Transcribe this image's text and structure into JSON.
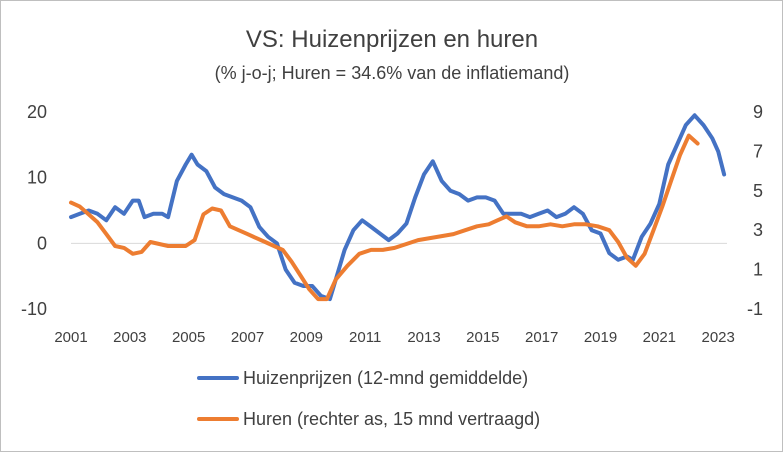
{
  "chart_data": {
    "type": "line",
    "title": "VS: Huizenprijzen  en huren",
    "subtitle": "(% j-o-j; Huren = 34.6% van de inflatiemand)",
    "x_ticks": [
      "2001",
      "2003",
      "2005",
      "2007",
      "2009",
      "2011",
      "2013",
      "2015",
      "2017",
      "2019",
      "2021",
      "2023"
    ],
    "x_range": [
      2001,
      2023.3
    ],
    "y_left": {
      "ticks": [
        "20",
        "10",
        "0",
        "-10"
      ],
      "range": [
        -10,
        20
      ]
    },
    "y_right": {
      "ticks": [
        "9",
        "7",
        "5",
        "3",
        "1",
        "-1"
      ],
      "range": [
        -1,
        9
      ]
    },
    "series": [
      {
        "name": "Huizenprijzen (12-mnd gemiddelde)",
        "axis": "left",
        "color": "#4472C4",
        "x": [
          2001.0,
          2001.3,
          2001.6,
          2001.9,
          2002.2,
          2002.5,
          2002.8,
          2003.1,
          2003.3,
          2003.5,
          2003.8,
          2004.1,
          2004.3,
          2004.6,
          2004.9,
          2005.1,
          2005.3,
          2005.6,
          2005.9,
          2006.2,
          2006.5,
          2006.8,
          2007.1,
          2007.4,
          2007.7,
          2008.0,
          2008.3,
          2008.6,
          2008.9,
          2009.2,
          2009.5,
          2009.8,
          2010.0,
          2010.3,
          2010.6,
          2010.9,
          2011.2,
          2011.5,
          2011.8,
          2012.1,
          2012.4,
          2012.7,
          2013.0,
          2013.3,
          2013.6,
          2013.9,
          2014.2,
          2014.5,
          2014.8,
          2015.1,
          2015.4,
          2015.7,
          2016.0,
          2016.3,
          2016.6,
          2016.9,
          2017.2,
          2017.5,
          2017.8,
          2018.1,
          2018.4,
          2018.7,
          2019.0,
          2019.3,
          2019.6,
          2019.9,
          2020.1,
          2020.4,
          2020.7,
          2021.0,
          2021.3,
          2021.6,
          2021.9,
          2022.2,
          2022.5,
          2022.8,
          2023.0,
          2023.2
        ],
        "values": [
          4,
          4.5,
          5,
          4.5,
          3.5,
          5.5,
          4.5,
          6.5,
          6.5,
          4,
          4.5,
          4.5,
          4,
          9.5,
          12,
          13.5,
          12,
          11,
          8.5,
          7.5,
          7,
          6.5,
          5.5,
          2.5,
          1,
          0,
          -4,
          -6,
          -6.5,
          -6.5,
          -8,
          -8.5,
          -5.5,
          -1,
          2,
          3.5,
          2.5,
          1.5,
          0.5,
          1.5,
          3,
          7,
          10.5,
          12.5,
          9.5,
          8,
          7.5,
          6.5,
          7,
          7,
          6.5,
          4.5,
          4.5,
          4.5,
          4,
          4.5,
          5,
          4,
          4.5,
          5.5,
          4.5,
          2,
          1.5,
          -1.5,
          -2.5,
          -2,
          -2.5,
          1,
          3,
          6,
          12,
          15,
          18,
          19.5,
          18,
          16,
          14,
          10.5
        ]
      },
      {
        "name": "Huren (rechter as, 15 mnd vertraagd)",
        "axis": "right",
        "color": "#ED7D31",
        "x": [
          2001.0,
          2001.3,
          2001.6,
          2001.9,
          2002.2,
          2002.5,
          2002.8,
          2003.1,
          2003.4,
          2003.7,
          2004.0,
          2004.3,
          2004.6,
          2004.9,
          2005.2,
          2005.5,
          2005.8,
          2006.1,
          2006.4,
          2006.7,
          2007.0,
          2007.3,
          2007.6,
          2007.9,
          2008.2,
          2008.5,
          2008.8,
          2009.1,
          2009.4,
          2009.7,
          2010.0,
          2010.4,
          2010.8,
          2011.2,
          2011.6,
          2012.0,
          2012.4,
          2012.8,
          2013.2,
          2013.6,
          2014.0,
          2014.4,
          2014.8,
          2015.2,
          2015.5,
          2015.8,
          2016.1,
          2016.5,
          2016.9,
          2017.3,
          2017.7,
          2018.1,
          2018.5,
          2018.9,
          2019.3,
          2019.6,
          2019.9,
          2020.2,
          2020.5,
          2020.8,
          2021.1,
          2021.4,
          2021.7,
          2022.0,
          2022.3
        ],
        "values": [
          4.4,
          4.2,
          3.8,
          3.4,
          2.8,
          2.2,
          2.1,
          1.8,
          1.9,
          2.4,
          2.3,
          2.2,
          2.2,
          2.2,
          2.5,
          3.8,
          4.1,
          4.0,
          3.2,
          3.0,
          2.8,
          2.6,
          2.4,
          2.2,
          2.0,
          1.4,
          0.7,
          0.0,
          -0.5,
          -0.5,
          0.5,
          1.2,
          1.8,
          2.0,
          2.0,
          2.1,
          2.3,
          2.5,
          2.6,
          2.7,
          2.8,
          3.0,
          3.2,
          3.3,
          3.5,
          3.7,
          3.4,
          3.2,
          3.2,
          3.3,
          3.2,
          3.3,
          3.3,
          3.2,
          3.0,
          2.4,
          1.6,
          1.2,
          1.8,
          3.0,
          4.2,
          5.5,
          6.8,
          7.8,
          7.4
        ]
      }
    ],
    "legend": [
      "Huizenprijzen (12-mnd gemiddelde)",
      "Huren (rechter as, 15 mnd vertraagd)"
    ],
    "legend_position": "bottom",
    "grid": false
  }
}
